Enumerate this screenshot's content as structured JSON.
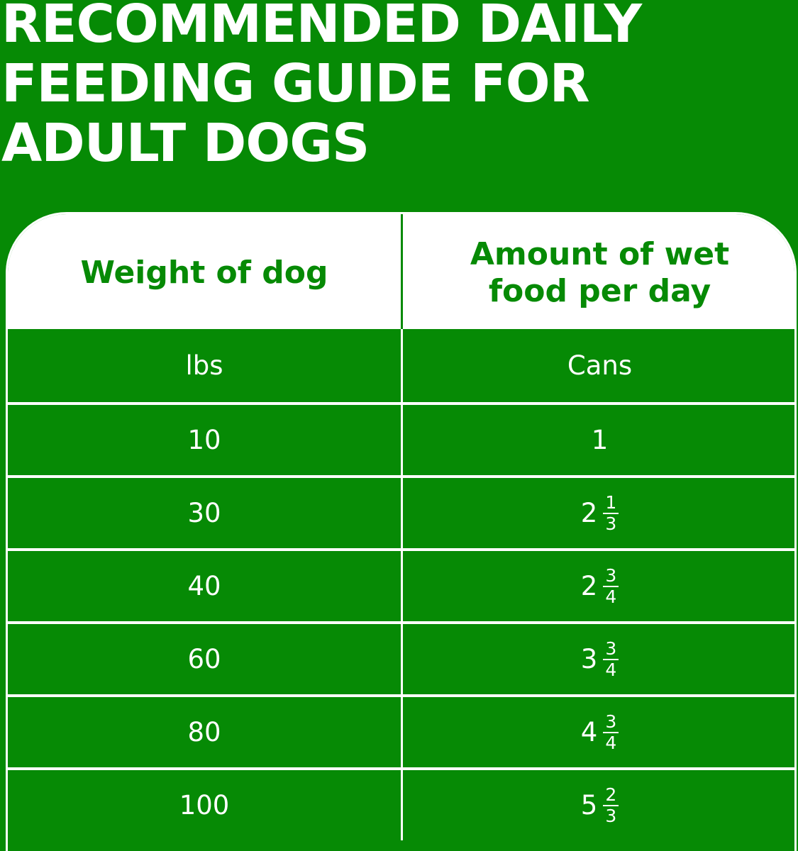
{
  "title": {
    "line1": "RECOMMENDED DAILY",
    "line2": "FEEDING GUIDE FOR",
    "line3": "ADULT DOGS"
  },
  "table": {
    "headers": {
      "weight": "Weight of dog",
      "amount_line1": "Amount of wet",
      "amount_line2": "food per day"
    },
    "units": {
      "weight": "lbs",
      "amount": "Cans"
    },
    "rows": [
      {
        "weight": "10",
        "whole": "1",
        "num": "",
        "den": ""
      },
      {
        "weight": "30",
        "whole": "2",
        "num": "1",
        "den": "3"
      },
      {
        "weight": "40",
        "whole": "2",
        "num": "3",
        "den": "4"
      },
      {
        "weight": "60",
        "whole": "3",
        "num": "3",
        "den": "4"
      },
      {
        "weight": "80",
        "whole": "4",
        "num": "3",
        "den": "4"
      },
      {
        "weight": "100",
        "whole": "5",
        "num": "2",
        "den": "3"
      }
    ]
  },
  "colors": {
    "brand_green": "#068a05",
    "white": "#ffffff"
  }
}
